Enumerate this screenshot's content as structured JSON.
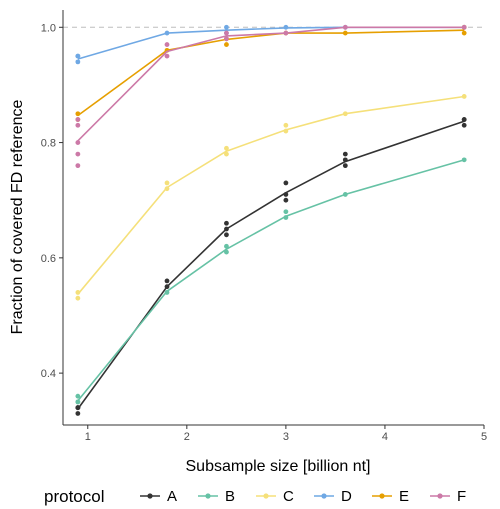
{
  "chart_data": {
    "type": "line",
    "xlabel": "Subsample size [billion nt]",
    "ylabel": "Fraction of covered FD reference",
    "xlim": [
      0.75,
      5.0
    ],
    "ylim": [
      0.31,
      1.03
    ],
    "x_ticks": [
      1,
      2,
      3,
      4,
      5
    ],
    "y_ticks": [
      0.4,
      0.6,
      0.8,
      1.0
    ],
    "x_tick_labels": [
      "1",
      "2",
      "3",
      "4",
      "5"
    ],
    "y_tick_labels": [
      "0.4",
      "0.6",
      "0.8",
      "1.0"
    ],
    "reference_line": {
      "y": 1.0,
      "style": "dashed"
    },
    "grid": false,
    "legend_title": "protocol",
    "legend_position": "bottom",
    "series": [
      {
        "name": "A",
        "color": "#333333",
        "x": [
          0.9,
          1.8,
          2.4,
          3.0,
          3.6,
          4.8
        ],
        "y": [
          0.338,
          0.55,
          0.65,
          0.713,
          0.767,
          0.837
        ],
        "points": [
          [
            0.9,
            0.33
          ],
          [
            0.9,
            0.34
          ],
          [
            0.9,
            0.34
          ],
          [
            0.9,
            0.34
          ],
          [
            1.8,
            0.55
          ],
          [
            1.8,
            0.56
          ],
          [
            2.4,
            0.64
          ],
          [
            2.4,
            0.65
          ],
          [
            2.4,
            0.66
          ],
          [
            3.0,
            0.7
          ],
          [
            3.0,
            0.71
          ],
          [
            3.0,
            0.73
          ],
          [
            3.6,
            0.76
          ],
          [
            3.6,
            0.77
          ],
          [
            3.6,
            0.78
          ],
          [
            4.8,
            0.83
          ],
          [
            4.8,
            0.84
          ],
          [
            4.8,
            0.84
          ]
        ]
      },
      {
        "name": "B",
        "color": "#66c2a5",
        "x": [
          0.9,
          1.8,
          2.4,
          3.0,
          3.6,
          4.8
        ],
        "y": [
          0.352,
          0.542,
          0.615,
          0.672,
          0.71,
          0.77
        ],
        "points": [
          [
            0.9,
            0.35
          ],
          [
            0.9,
            0.36
          ],
          [
            0.9,
            0.35
          ],
          [
            1.8,
            0.54
          ],
          [
            2.4,
            0.61
          ],
          [
            2.4,
            0.62
          ],
          [
            3.0,
            0.67
          ],
          [
            3.0,
            0.68
          ],
          [
            3.6,
            0.71
          ],
          [
            4.8,
            0.77
          ]
        ]
      },
      {
        "name": "C",
        "color": "#f5e07a",
        "x": [
          0.9,
          1.8,
          2.4,
          3.0,
          3.6,
          4.8
        ],
        "y": [
          0.537,
          0.722,
          0.785,
          0.822,
          0.85,
          0.88
        ],
        "points": [
          [
            0.9,
            0.53
          ],
          [
            0.9,
            0.54
          ],
          [
            1.8,
            0.72
          ],
          [
            1.8,
            0.73
          ],
          [
            2.4,
            0.78
          ],
          [
            2.4,
            0.79
          ],
          [
            3.0,
            0.82
          ],
          [
            3.0,
            0.83
          ],
          [
            3.6,
            0.85
          ],
          [
            4.8,
            0.88
          ]
        ]
      },
      {
        "name": "D",
        "color": "#6fa8e4",
        "x": [
          0.9,
          1.8,
          2.4,
          3.0,
          3.6,
          4.8
        ],
        "y": [
          0.945,
          0.99,
          0.995,
          0.999,
          1.0,
          1.0
        ],
        "points": [
          [
            0.9,
            0.94
          ],
          [
            0.9,
            0.95
          ],
          [
            0.9,
            0.95
          ],
          [
            1.8,
            0.99
          ],
          [
            2.4,
            0.99
          ],
          [
            2.4,
            1.0
          ],
          [
            3.0,
            1.0
          ],
          [
            3.6,
            1.0
          ],
          [
            4.8,
            1.0
          ]
        ]
      },
      {
        "name": "E",
        "color": "#e69f00",
        "x": [
          0.9,
          1.8,
          2.4,
          3.0,
          3.6,
          4.8
        ],
        "y": [
          0.847,
          0.96,
          0.979,
          0.99,
          0.99,
          0.995
        ],
        "points": [
          [
            0.9,
            0.84
          ],
          [
            0.9,
            0.85
          ],
          [
            1.8,
            0.96
          ],
          [
            2.4,
            0.97
          ],
          [
            2.4,
            0.98
          ],
          [
            3.0,
            0.99
          ],
          [
            3.6,
            0.99
          ],
          [
            4.8,
            0.99
          ],
          [
            4.8,
            1.0
          ]
        ]
      },
      {
        "name": "F",
        "color": "#cc79a7",
        "x": [
          0.9,
          1.8,
          2.4,
          3.0,
          3.6,
          4.8
        ],
        "y": [
          0.803,
          0.958,
          0.985,
          0.99,
          1.0,
          1.0
        ],
        "points": [
          [
            0.9,
            0.76
          ],
          [
            0.9,
            0.78
          ],
          [
            0.9,
            0.8
          ],
          [
            0.9,
            0.83
          ],
          [
            0.9,
            0.84
          ],
          [
            1.8,
            0.95
          ],
          [
            1.8,
            0.97
          ],
          [
            2.4,
            0.98
          ],
          [
            2.4,
            0.99
          ],
          [
            3.0,
            0.99
          ],
          [
            3.6,
            1.0
          ],
          [
            4.8,
            1.0
          ]
        ]
      }
    ]
  }
}
